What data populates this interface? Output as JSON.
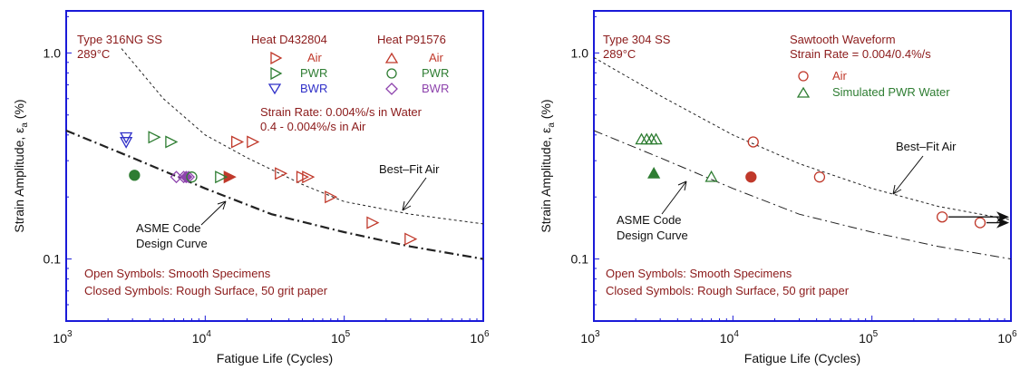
{
  "chart_data": [
    {
      "type": "scatter",
      "title": "",
      "xlabel": "Fatigue Life (Cycles)",
      "ylabel": "Strain Amplitude, ε_a (%)",
      "xscale": "log",
      "yscale": "log",
      "xlim": [
        1000,
        1000000
      ],
      "ylim": [
        0.05,
        1.6
      ],
      "x_tick_labels": [
        "10",
        "10",
        "10",
        "10"
      ],
      "x_tick_exponents": [
        "3",
        "4",
        "5",
        "6"
      ],
      "x_tick_values": [
        1000,
        10000,
        100000,
        1000000
      ],
      "y_tick_labels": [
        "0.1",
        "1.0"
      ],
      "y_tick_values": [
        0.1,
        1.0
      ],
      "grid": false,
      "annotations": {
        "material": "Type 316NG SS",
        "temperature": "289°C",
        "heat1_title": "Heat D432804",
        "heat2_title": "Heat P91576",
        "legend_air": "Air",
        "legend_pwr": "PWR",
        "legend_bwr": "BWR",
        "strain_rate_line1": "Strain Rate:  0.004%/s in Water",
        "strain_rate_line2": "0.4 - 0.004%/s in Air",
        "best_fit_label": "Best–Fit Air",
        "asme_label_line1": "ASME Code",
        "asme_label_line2": "Design Curve",
        "footer_line1": "Open Symbols: Smooth Specimens",
        "footer_line2": "Closed Symbols: Rough Surface, 50 grit paper"
      },
      "curves": [
        {
          "name": "Best-Fit Air",
          "style": "dotted",
          "x": [
            2500,
            5000,
            10000,
            20000,
            50000,
            100000,
            300000,
            1000000
          ],
          "y": [
            1.05,
            0.6,
            0.4,
            0.31,
            0.23,
            0.19,
            0.165,
            0.148
          ]
        },
        {
          "name": "ASME Code Design Curve",
          "style": "dashdot",
          "x": [
            1000,
            3000,
            10000,
            30000,
            100000,
            300000,
            1000000
          ],
          "y": [
            0.42,
            0.31,
            0.22,
            0.165,
            0.135,
            0.115,
            0.1
          ]
        }
      ],
      "series": [
        {
          "name": "Air",
          "heat": "D432804",
          "marker": "tri-right",
          "filled": false,
          "color": "#c0392b",
          "points": [
            [
              17000,
              0.37
            ],
            [
              22000,
              0.37
            ],
            [
              35000,
              0.26
            ],
            [
              50000,
              0.25
            ],
            [
              55000,
              0.25
            ],
            [
              80000,
              0.2
            ],
            [
              160000,
              0.15
            ],
            [
              300000,
              0.125
            ]
          ]
        },
        {
          "name": "Air (rough)",
          "heat": "D432804",
          "marker": "tri-right",
          "filled": true,
          "color": "#c0392b",
          "points": [
            [
              15000,
              0.25
            ]
          ]
        },
        {
          "name": "PWR",
          "heat": "D432804",
          "marker": "tri-right",
          "filled": false,
          "color": "#2e7d32",
          "points": [
            [
              4300,
              0.39
            ],
            [
              5700,
              0.37
            ],
            [
              13000,
              0.25
            ]
          ]
        },
        {
          "name": "BWR",
          "heat": "D432804",
          "marker": "tri-down",
          "filled": false,
          "color": "#3030c8",
          "points": [
            [
              2700,
              0.39
            ],
            [
              2700,
              0.37
            ]
          ]
        },
        {
          "name": "PWR (rough)",
          "heat": "P91576",
          "marker": "circle",
          "filled": true,
          "color": "#2e7d32",
          "points": [
            [
              3100,
              0.255
            ]
          ]
        },
        {
          "name": "BWR",
          "heat": "P91576",
          "marker": "diamond",
          "filled": false,
          "color": "#8e44ad",
          "points": [
            [
              6200,
              0.25
            ],
            [
              7000,
              0.25
            ],
            [
              7600,
              0.25
            ]
          ]
        },
        {
          "name": "BWR (rough)",
          "heat": "P91576",
          "marker": "diamond",
          "filled": true,
          "color": "#8e44ad",
          "points": [
            [
              7300,
              0.25
            ]
          ]
        },
        {
          "name": "PWR",
          "heat": "P91576",
          "marker": "circle",
          "filled": false,
          "color": "#2e7d32",
          "points": [
            [
              8000,
              0.25
            ]
          ]
        }
      ],
      "legend_colors": {
        "air": "#c0392b",
        "pwr": "#2e7d32",
        "bwr": "#3030c8",
        "bwr_heat2": "#8e44ad"
      }
    },
    {
      "type": "scatter",
      "title": "",
      "xlabel": "Fatigue Life (Cycles)",
      "ylabel": "Strain Amplitude, ε_a (%)",
      "xscale": "log",
      "yscale": "log",
      "xlim": [
        1000,
        1000000
      ],
      "ylim": [
        0.05,
        1.6
      ],
      "x_tick_labels": [
        "10",
        "10",
        "10",
        "10"
      ],
      "x_tick_exponents": [
        "3",
        "4",
        "5",
        "6"
      ],
      "x_tick_values": [
        1000,
        10000,
        100000,
        1000000
      ],
      "y_tick_labels": [
        "0.1",
        "1.0"
      ],
      "y_tick_values": [
        0.1,
        1.0
      ],
      "grid": false,
      "annotations": {
        "material": "Type 304 SS",
        "temperature": "289°C",
        "waveform_line1": "Sawtooth Waveform",
        "waveform_line2": "Strain Rate = 0.004/0.4%/s",
        "legend_air": "Air",
        "legend_pwr": "Simulated PWR Water",
        "best_fit_label": "Best–Fit Air",
        "asme_label_line1": "ASME Code",
        "asme_label_line2": "Design Curve",
        "footer_line1": "Open Symbols: Smooth Specimens",
        "footer_line2": "Closed Symbols: Rough Surface, 50 grit paper"
      },
      "curves": [
        {
          "name": "Best-Fit Air",
          "style": "dotted",
          "x": [
            1000,
            3000,
            10000,
            30000,
            100000,
            300000,
            1000000
          ],
          "y": [
            0.95,
            0.62,
            0.4,
            0.29,
            0.22,
            0.18,
            0.155
          ]
        },
        {
          "name": "ASME Code Design Curve",
          "style": "dashdot",
          "x": [
            1000,
            3000,
            10000,
            30000,
            100000,
            300000,
            1000000
          ],
          "y": [
            0.42,
            0.31,
            0.22,
            0.165,
            0.135,
            0.115,
            0.1
          ]
        }
      ],
      "series": [
        {
          "name": "Air",
          "marker": "circle",
          "filled": false,
          "color": "#c0392b",
          "points": [
            [
              14000,
              0.37
            ],
            [
              42000,
              0.25
            ],
            [
              320000,
              0.16
            ],
            [
              600000,
              0.15
            ]
          ]
        },
        {
          "name": "Air (rough)",
          "marker": "circle",
          "filled": true,
          "color": "#c0392b",
          "points": [
            [
              13500,
              0.25
            ]
          ]
        },
        {
          "name": "Simulated PWR Water",
          "marker": "tri-up",
          "filled": false,
          "color": "#2e7d32",
          "points": [
            [
              2200,
              0.38
            ],
            [
              2400,
              0.38
            ],
            [
              2600,
              0.38
            ],
            [
              2800,
              0.38
            ],
            [
              7000,
              0.25
            ]
          ]
        },
        {
          "name": "Simulated PWR Water (rough)",
          "marker": "tri-up",
          "filled": true,
          "color": "#2e7d32",
          "points": [
            [
              2700,
              0.26
            ]
          ]
        }
      ],
      "runouts": [
        [
          320000,
          0.16
        ],
        [
          600000,
          0.15
        ]
      ],
      "legend_colors": {
        "air": "#c0392b",
        "pwr": "#2e7d32"
      }
    }
  ]
}
